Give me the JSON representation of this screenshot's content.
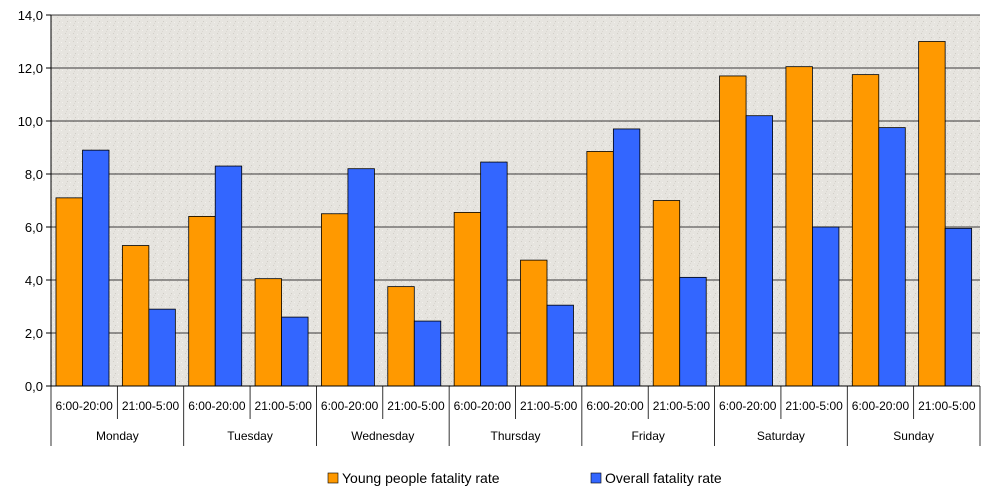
{
  "chart_data": {
    "type": "bar",
    "title": "",
    "xlabel": "",
    "ylabel": "",
    "ylim": [
      0,
      14
    ],
    "y_ticks": [
      "0,0",
      "2,0",
      "4,0",
      "6,0",
      "8,0",
      "10,0",
      "12,0",
      "14,0"
    ],
    "grid": true,
    "legend_position": "bottom",
    "groups": [
      "Monday",
      "Tuesday",
      "Wednesday",
      "Thursday",
      "Friday",
      "Saturday",
      "Sunday"
    ],
    "categories": [
      "6:00-20:00",
      "21:00-5:00",
      "6:00-20:00",
      "21:00-5:00",
      "6:00-20:00",
      "21:00-5:00",
      "6:00-20:00",
      "21:00-5:00",
      "6:00-20:00",
      "21:00-5:00",
      "6:00-20:00",
      "21:00-5:00",
      "6:00-20:00",
      "21:00-5:00"
    ],
    "series": [
      {
        "name": "Young people fatality rate",
        "color": "#ff9900",
        "values": [
          7.1,
          5.3,
          6.4,
          4.05,
          6.5,
          3.75,
          6.55,
          4.75,
          8.85,
          7.0,
          11.7,
          12.05,
          11.75,
          13.0
        ]
      },
      {
        "name": "Overall fatality rate",
        "color": "#3366ff",
        "values": [
          8.9,
          2.9,
          8.3,
          2.6,
          8.2,
          2.45,
          8.45,
          3.05,
          9.7,
          4.1,
          10.2,
          6.0,
          9.75,
          5.95
        ]
      }
    ]
  }
}
